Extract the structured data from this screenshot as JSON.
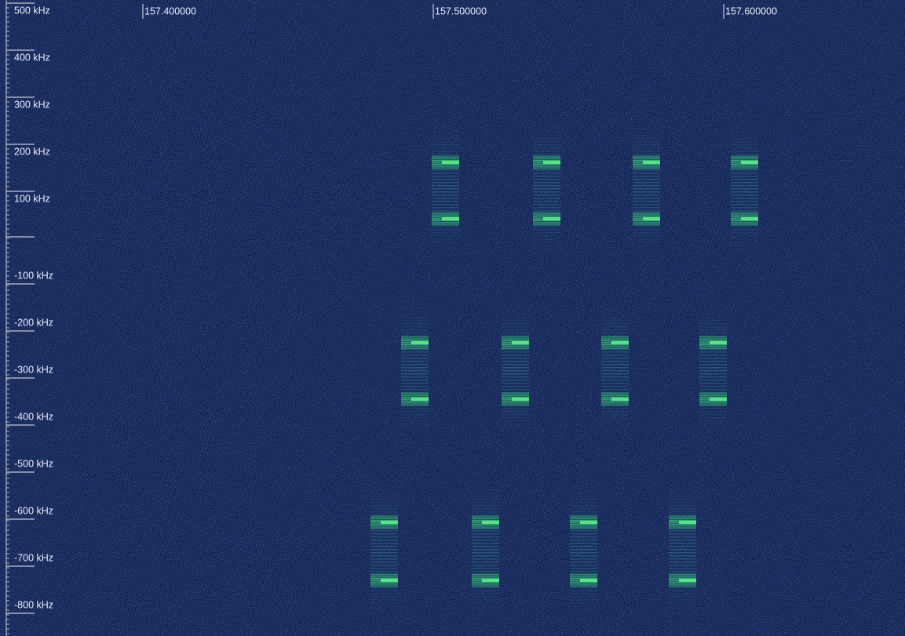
{
  "frequency_labels": [
    "157.400000",
    "157.500000",
    "157.600000"
  ],
  "offset_labels": [
    "500 kHz",
    "400 kHz",
    "300 kHz",
    "200 kHz",
    "100 kHz",
    "-100 kHz",
    "-200 kHz",
    "-300 kHz",
    "-400 kHz",
    "-500 kHz",
    "-600 kHz",
    "-700 kHz",
    "-800 kHz"
  ]
}
